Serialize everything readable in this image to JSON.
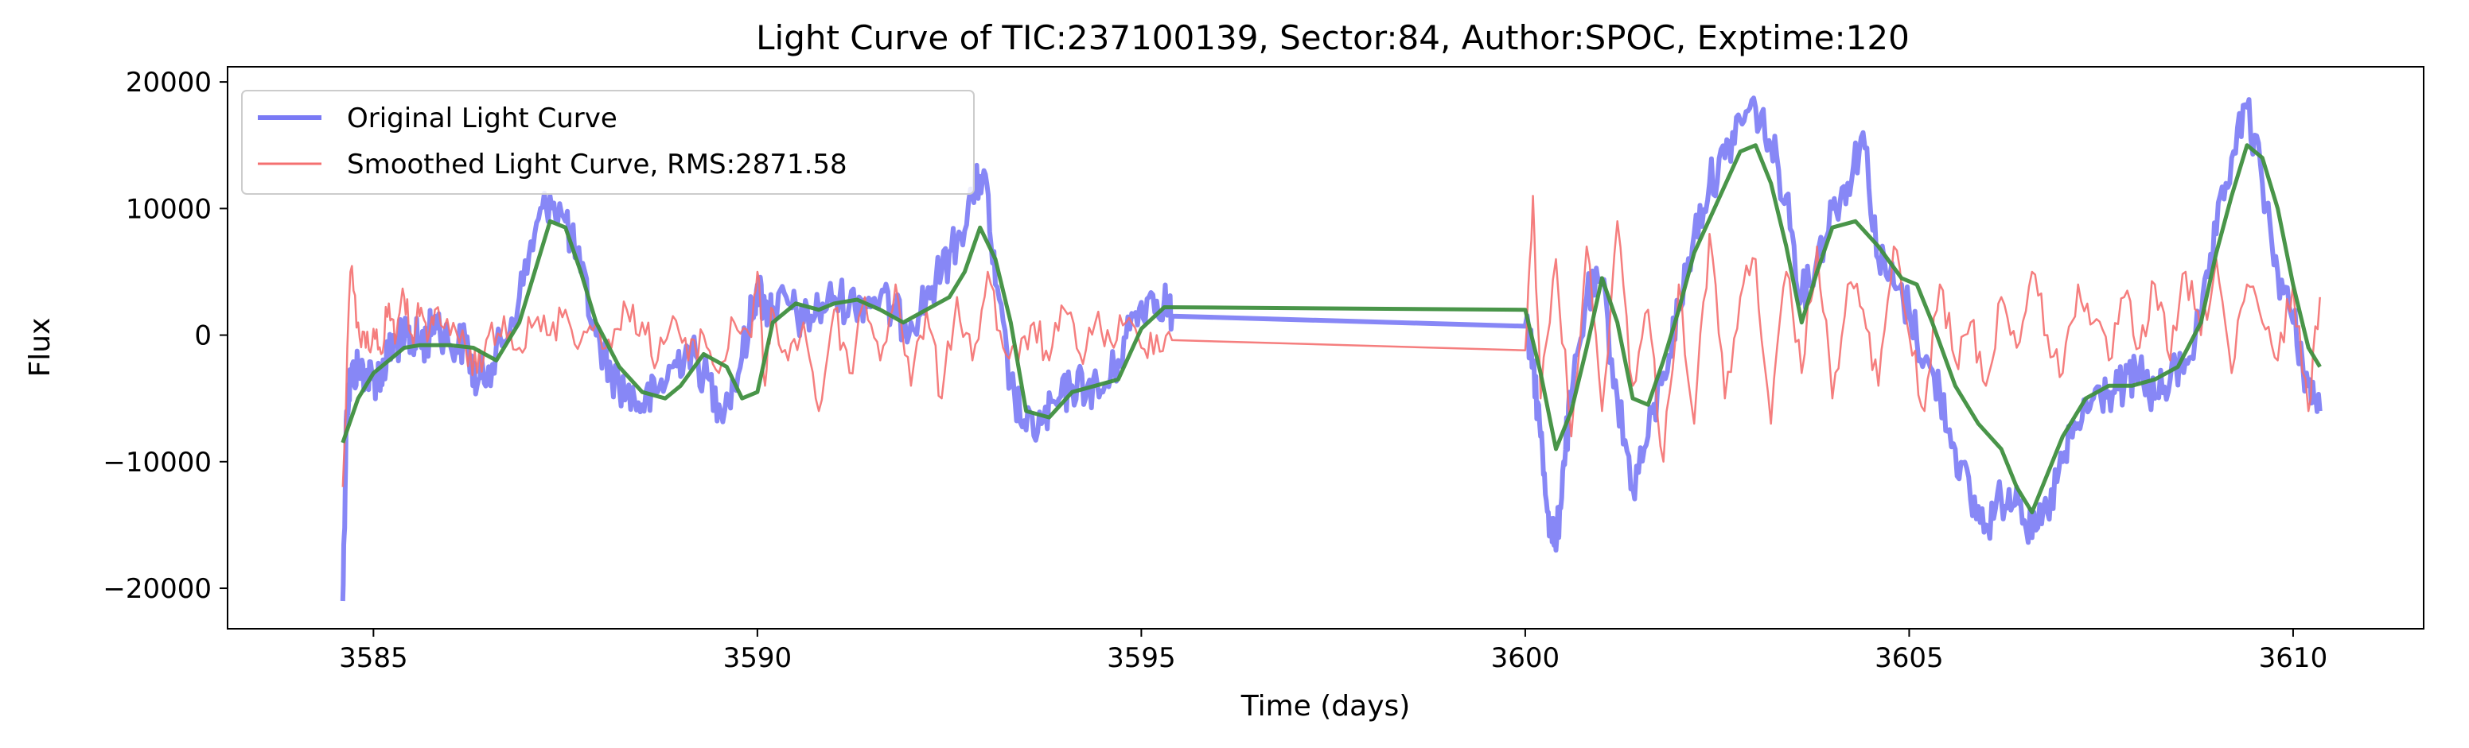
{
  "chart_data": {
    "type": "line",
    "title": "Light Curve of TIC:237100139, Sector:84, Author:SPOC, Exptime:120",
    "xlabel": "Time (days)",
    "ylabel": "Flux",
    "xlim": [
      3583.1,
      3611.7
    ],
    "ylim": [
      -23200,
      21200
    ],
    "xticks": [
      3585,
      3590,
      3595,
      3600,
      3605,
      3610
    ],
    "yticks": [
      -20000,
      -10000,
      0,
      10000,
      20000
    ],
    "grid": false,
    "legend_position": "upper-left",
    "series": [
      {
        "name": "Original Light Curve",
        "color": "#7a7af5",
        "style": "thick-noisy",
        "x": [
          3584.6,
          3584.65,
          3584.7,
          3584.8,
          3584.9,
          3585.0,
          3585.1,
          3585.2,
          3585.3,
          3585.4,
          3585.5,
          3585.6,
          3585.7,
          3585.8,
          3586.0,
          3586.2,
          3586.35,
          3586.5,
          3586.7,
          3586.9,
          3587.1,
          3587.3,
          3587.5,
          3587.7,
          3587.9,
          3588.1,
          3588.3,
          3588.5,
          3588.7,
          3588.9,
          3589.1,
          3589.3,
          3589.5,
          3589.7,
          3589.9,
          3590.0,
          3590.1,
          3590.2,
          3590.4,
          3590.6,
          3590.8,
          3591.0,
          3591.2,
          3591.4,
          3591.6,
          3591.8,
          3592.0,
          3592.2,
          3592.4,
          3592.6,
          3592.8,
          3592.95,
          3593.1,
          3593.3,
          3593.5,
          3593.7,
          3593.9,
          3594.1,
          3594.3,
          3594.5,
          3594.7,
          3594.9,
          3595.1,
          3595.3,
          3595.4,
          3600.0,
          3600.1,
          3600.2,
          3600.3,
          3600.4,
          3600.5,
          3600.6,
          3600.8,
          3601.0,
          3601.2,
          3601.4,
          3601.6,
          3601.8,
          3602.0,
          3602.2,
          3602.4,
          3602.6,
          3602.8,
          3603.0,
          3603.2,
          3603.4,
          3603.6,
          3603.8,
          3604.0,
          3604.2,
          3604.4,
          3604.6,
          3604.8,
          3605.0,
          3605.2,
          3605.4,
          3605.6,
          3605.8,
          3606.0,
          3606.2,
          3606.4,
          3606.6,
          3606.8,
          3607.0,
          3607.2,
          3607.4,
          3607.6,
          3607.8,
          3608.0,
          3608.2,
          3608.4,
          3608.6,
          3608.8,
          3609.0,
          3609.2,
          3609.4,
          3609.6,
          3609.8,
          3610.0,
          3610.2,
          3610.35
        ],
        "y": [
          -21000,
          -6000,
          -3500,
          -2500,
          -3000,
          -3500,
          -3000,
          -1500,
          -500,
          -400,
          -300,
          -400,
          -500,
          1500,
          -800,
          -600,
          -4000,
          -2500,
          -500,
          3000,
          8000,
          11000,
          9000,
          5000,
          0,
          -3000,
          -4500,
          -5500,
          -4500,
          -2500,
          -1000,
          -3000,
          -5500,
          -4000,
          1000,
          4000,
          2000,
          2200,
          2500,
          1000,
          2000,
          3000,
          2500,
          2800,
          3000,
          1500,
          1000,
          3000,
          5000,
          7500,
          11000,
          13000,
          4000,
          -4000,
          -7500,
          -7000,
          -5500,
          -4000,
          -4000,
          -4500,
          -2000,
          1500,
          3000,
          2800,
          1500,
          700,
          -2000,
          -8000,
          -14000,
          -17000,
          -10000,
          -5000,
          3000,
          4000,
          -5000,
          -12000,
          -8000,
          -3000,
          2000,
          8000,
          12000,
          14000,
          17000,
          18000,
          15000,
          11000,
          3000,
          6000,
          10000,
          12000,
          16000,
          6000,
          4000,
          2000,
          -2000,
          -4500,
          -9000,
          -13000,
          -15000,
          -13000,
          -12000,
          -16000,
          -14000,
          -10000,
          -7000,
          -5000,
          -4500,
          -4000,
          -3000,
          -5000,
          -3500,
          -2000,
          1000,
          8000,
          14000,
          18000,
          12000,
          5000,
          1000,
          -4000,
          -6000
        ]
      },
      {
        "name": "Smoothed Light Curve, RMS:2871.58",
        "color": "#f47070",
        "style": "thin-noisy",
        "x": [
          3584.6,
          3584.7,
          3584.8,
          3584.9,
          3585.0,
          3585.1,
          3585.2,
          3585.3,
          3585.4,
          3585.5,
          3585.6,
          3585.7,
          3585.8,
          3586.0,
          3586.2,
          3586.35,
          3586.5,
          3586.7,
          3586.9,
          3587.1,
          3587.3,
          3587.5,
          3587.7,
          3587.9,
          3588.1,
          3588.3,
          3588.5,
          3588.7,
          3588.9,
          3589.1,
          3589.3,
          3589.5,
          3589.7,
          3589.9,
          3590.0,
          3590.1,
          3590.2,
          3590.4,
          3590.6,
          3590.8,
          3591.0,
          3591.2,
          3591.4,
          3591.6,
          3591.8,
          3592.0,
          3592.2,
          3592.4,
          3592.6,
          3592.8,
          3593.0,
          3593.2,
          3593.4,
          3593.6,
          3593.8,
          3594.0,
          3594.2,
          3594.4,
          3594.6,
          3594.8,
          3595.0,
          3595.2,
          3595.4,
          3600.0,
          3600.1,
          3600.2,
          3600.4,
          3600.6,
          3600.8,
          3601.0,
          3601.2,
          3601.4,
          3601.6,
          3601.8,
          3602.0,
          3602.2,
          3602.4,
          3602.6,
          3602.8,
          3603.0,
          3603.2,
          3603.4,
          3603.6,
          3603.8,
          3604.0,
          3604.2,
          3604.4,
          3604.6,
          3604.8,
          3605.0,
          3605.2,
          3605.4,
          3605.6,
          3605.8,
          3606.0,
          3606.2,
          3606.4,
          3606.6,
          3606.8,
          3607.0,
          3607.2,
          3607.4,
          3607.6,
          3607.8,
          3608.0,
          3608.2,
          3608.4,
          3608.6,
          3608.8,
          3609.0,
          3609.2,
          3609.4,
          3609.6,
          3609.8,
          3610.0,
          3610.2,
          3610.35
        ],
        "y": [
          -12000,
          5000,
          1000,
          -1000,
          500,
          -1500,
          2500,
          0,
          3000,
          0,
          1500,
          -500,
          2000,
          0,
          -1000,
          -3000,
          0,
          1500,
          -1000,
          1000,
          0,
          2000,
          -500,
          1000,
          -1000,
          2000,
          1000,
          -2000,
          1500,
          -2000,
          0,
          -3000,
          1000,
          0,
          5000,
          -4000,
          2000,
          -2000,
          1000,
          -6000,
          2000,
          -3000,
          3000,
          -2000,
          4000,
          -4000,
          2000,
          -5000,
          3000,
          -2000,
          5000,
          -1000,
          -2000,
          1000,
          -2000,
          2000,
          -1500,
          1000,
          -500,
          1000,
          -1000,
          0,
          -400,
          -1200,
          11000,
          -5000,
          6000,
          -8000,
          7000,
          -6000,
          9000,
          -4000,
          2000,
          -10000,
          4000,
          -7000,
          8000,
          -5000,
          3000,
          6000,
          -7000,
          5000,
          -3000,
          7000,
          -5000,
          4000,
          2000,
          -4000,
          7000,
          0,
          -6000,
          4000,
          -2000,
          1000,
          -4000,
          3000,
          -1000,
          5000,
          0,
          -3000,
          4000,
          1000,
          -2000,
          3000,
          -1000,
          4000,
          -2000,
          5000,
          0,
          6000,
          -3000,
          4000,
          1000,
          -2000,
          4000,
          -6000,
          3000
        ]
      },
      {
        "name": "",
        "color": "#3f8f3f",
        "style": "smooth",
        "x": [
          3584.6,
          3584.8,
          3585.0,
          3585.2,
          3585.4,
          3585.6,
          3586.0,
          3586.3,
          3586.6,
          3586.9,
          3587.1,
          3587.3,
          3587.5,
          3587.7,
          3587.9,
          3588.2,
          3588.5,
          3588.8,
          3589.0,
          3589.3,
          3589.6,
          3589.8,
          3590.0,
          3590.2,
          3590.5,
          3590.8,
          3591.0,
          3591.3,
          3591.6,
          3591.9,
          3592.2,
          3592.5,
          3592.7,
          3592.9,
          3593.1,
          3593.3,
          3593.5,
          3593.8,
          3594.1,
          3594.4,
          3594.7,
          3595.0,
          3595.3,
          3600.0,
          3600.2,
          3600.4,
          3600.6,
          3600.8,
          3601.0,
          3601.2,
          3601.4,
          3601.6,
          3601.8,
          3602.0,
          3602.2,
          3602.5,
          3602.8,
          3603.0,
          3603.2,
          3603.4,
          3603.6,
          3603.8,
          3604.0,
          3604.3,
          3604.6,
          3604.9,
          3605.1,
          3605.3,
          3605.6,
          3605.9,
          3606.2,
          3606.4,
          3606.6,
          3606.8,
          3607.0,
          3607.3,
          3607.6,
          3607.9,
          3608.2,
          3608.5,
          3608.8,
          3609.0,
          3609.2,
          3609.4,
          3609.6,
          3609.8,
          3610.0,
          3610.2,
          3610.35
        ],
        "y": [
          -8500,
          -5000,
          -3000,
          -2000,
          -1000,
          -800,
          -800,
          -1000,
          -2000,
          1000,
          5000,
          9000,
          8500,
          5000,
          1000,
          -2500,
          -4500,
          -5000,
          -4000,
          -1500,
          -2500,
          -5000,
          -4500,
          1000,
          2500,
          2000,
          2500,
          2800,
          2000,
          1000,
          2000,
          3000,
          5000,
          8500,
          6000,
          1000,
          -6000,
          -6500,
          -4500,
          -4000,
          -3500,
          500,
          2200,
          2000,
          -3000,
          -9000,
          -6000,
          -1000,
          4500,
          1000,
          -5000,
          -5500,
          -2000,
          2000,
          6500,
          10500,
          14500,
          15000,
          12000,
          7000,
          1000,
          5000,
          8500,
          9000,
          7000,
          4500,
          4000,
          1000,
          -4000,
          -7000,
          -9000,
          -12000,
          -14000,
          -11000,
          -8000,
          -5000,
          -4000,
          -4000,
          -3500,
          -2500,
          1000,
          6500,
          11000,
          15000,
          14000,
          10000,
          4000,
          -1000,
          -2500
        ]
      }
    ]
  }
}
